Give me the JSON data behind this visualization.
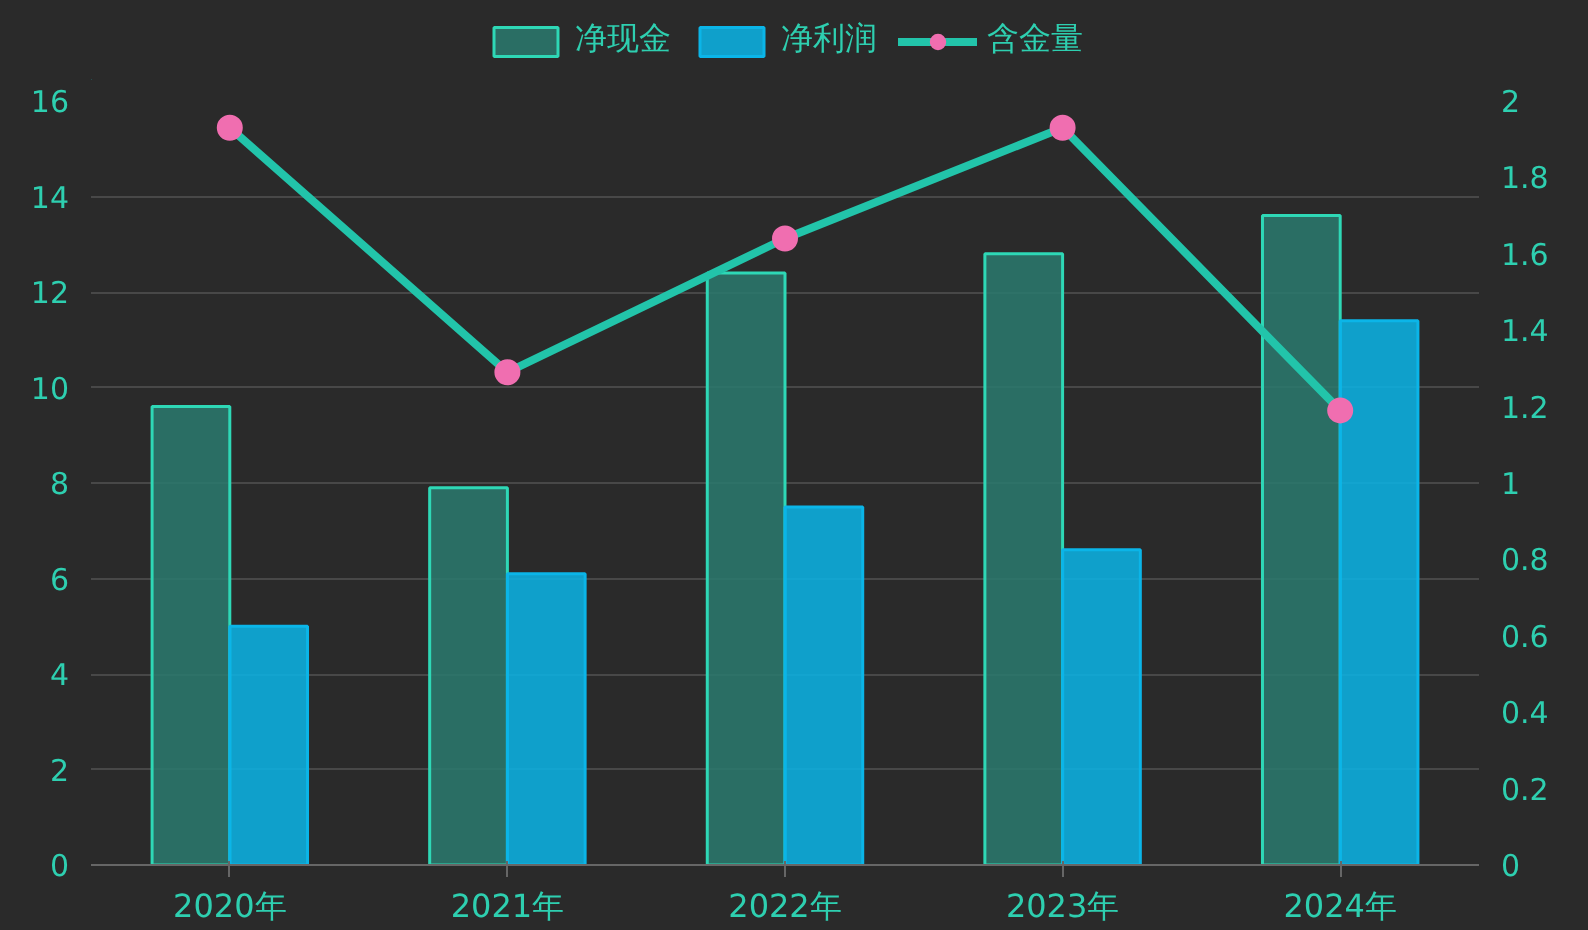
{
  "chart_data": {
    "type": "bar",
    "categories": [
      "2020年",
      "2021年",
      "2022年",
      "2023年",
      "2024年"
    ],
    "series": [
      {
        "name": "净现金",
        "color": "#2a7a6e",
        "values": [
          9.6,
          7.9,
          12.4,
          12.8,
          13.6
        ]
      },
      {
        "name": "净利润",
        "color": "#0bb5e8",
        "values": [
          5.0,
          6.1,
          7.5,
          6.6,
          11.4
        ]
      },
      {
        "name": "含金量",
        "type": "line",
        "axis": "y2",
        "color": "#22c4aa",
        "values": [
          1.93,
          1.29,
          1.64,
          1.93,
          1.19
        ]
      }
    ],
    "ylim": [
      0,
      16
    ],
    "yticks": [
      0,
      2,
      4,
      6,
      8,
      10,
      12,
      14,
      16
    ],
    "y2lim": [
      0,
      2
    ],
    "y2ticks": [
      0,
      {
        "value": 0.2,
        "label": "0.2"
      },
      {
        "value": 0.4,
        "label": "0.4"
      },
      {
        "value": 0.6,
        "label": "0.6"
      },
      {
        "value": 0.8,
        "label": "0.8"
      },
      1,
      {
        "value": 1.2,
        "label": "1.2"
      },
      {
        "value": 1.4,
        "label": "1.4"
      },
      {
        "value": 1.6,
        "label": "1.6"
      },
      {
        "value": 1.8,
        "label": "1.8"
      },
      2
    ],
    "grid": "y",
    "legend": "top",
    "marker": "circle"
  }
}
